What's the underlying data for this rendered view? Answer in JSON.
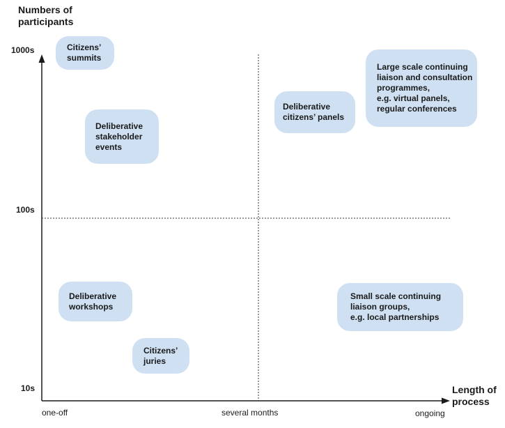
{
  "y_axis": {
    "title": [
      "Numbers of",
      "participants"
    ],
    "ticks": [
      "1000s",
      "100s",
      "10s"
    ]
  },
  "x_axis": {
    "title": [
      "Length of",
      "process"
    ],
    "ticks": [
      "one-off",
      "several months",
      "ongoing"
    ]
  },
  "bubbles": [
    {
      "lines": [
        "Citizens’",
        "summits"
      ]
    },
    {
      "lines": [
        "Deliberative",
        "stakeholder",
        "events"
      ]
    },
    {
      "lines": [
        "Deliberative",
        "citizens’ panels"
      ]
    },
    {
      "lines": [
        "Large scale continuing",
        "liaison and consultation",
        "programmes,",
        "e.g. virtual panels,",
        "regular conferences"
      ]
    },
    {
      "lines": [
        "Deliberative",
        "workshops"
      ]
    },
    {
      "lines": [
        "Citizens’",
        "juries"
      ]
    },
    {
      "lines": [
        "Small scale continuing",
        "liaison groups,",
        "e.g. local partnerships"
      ]
    }
  ],
  "colors": {
    "bubble_fill": "#cfe0f3",
    "axis": "#1a1a1a"
  }
}
